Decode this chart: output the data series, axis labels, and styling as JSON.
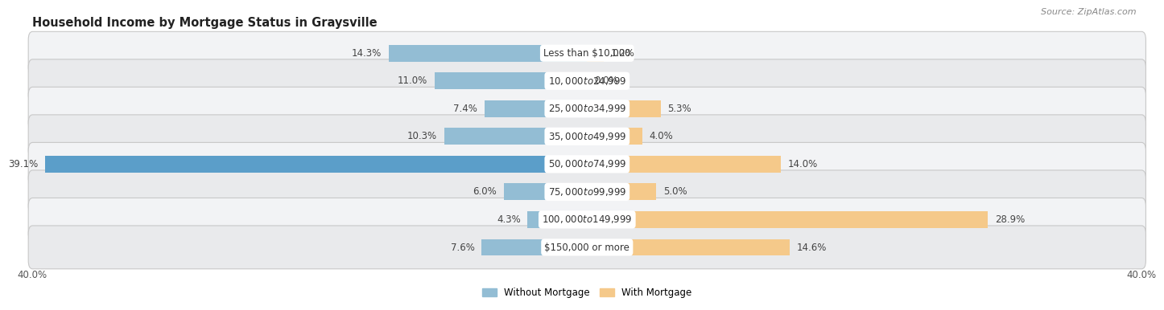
{
  "title": "Household Income by Mortgage Status in Graysville",
  "source": "Source: ZipAtlas.com",
  "categories": [
    "Less than $10,000",
    "$10,000 to $24,999",
    "$25,000 to $34,999",
    "$35,000 to $49,999",
    "$50,000 to $74,999",
    "$75,000 to $99,999",
    "$100,000 to $149,999",
    "$150,000 or more"
  ],
  "without_mortgage": [
    14.3,
    11.0,
    7.4,
    10.3,
    39.1,
    6.0,
    4.3,
    7.6
  ],
  "with_mortgage": [
    1.2,
    0.0,
    5.3,
    4.0,
    14.0,
    5.0,
    28.9,
    14.6
  ],
  "without_color": "#93bdd4",
  "without_color_dark": "#5b9ec9",
  "with_color": "#f5c98a",
  "axis_limit": 40.0,
  "legend_without": "Without Mortgage",
  "legend_with": "With Mortgage",
  "title_fontsize": 10.5,
  "label_fontsize": 8.5,
  "cat_fontsize": 8.5,
  "axis_label_fontsize": 8.5,
  "source_fontsize": 8,
  "row_colors": [
    "#f0f0f0",
    "#e8e8e8"
  ],
  "row_edge_color": "#d0d0d0",
  "value_color": "#444444"
}
